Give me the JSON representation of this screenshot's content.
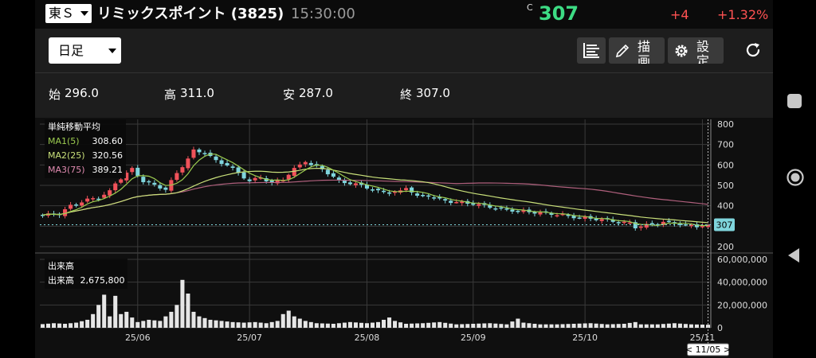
{
  "header": {
    "market": "東Ｓ",
    "stock_name": "リミックスポイント (3825)",
    "time": "15:30:00",
    "price_mark": "C",
    "price": "307",
    "change": "+4",
    "change_pct": "+1.32%"
  },
  "toolbar": {
    "period": "日足",
    "draw_label": "描画",
    "settings_label": "設定"
  },
  "ohlc": {
    "open_label": "始",
    "open": "296.0",
    "high_label": "高",
    "high": "311.0",
    "low_label": "安",
    "low": "287.0",
    "close_label": "終",
    "close": "307.0"
  },
  "legend": {
    "title": "単純移動平均",
    "ma1_label": "MA1(5)",
    "ma1_value": "308.60",
    "ma2_label": "MA2(25)",
    "ma2_value": "320.56",
    "ma3_label": "MA3(75)",
    "ma3_value": "389.21"
  },
  "volume_legend": {
    "title": "出来高",
    "label": "出来高",
    "value": "2,675,800"
  },
  "colors": {
    "up": "#f0525a",
    "down": "#7fd5dc",
    "ma1": "#9ccc50",
    "ma2": "#c9e07a",
    "ma3": "#b0607d",
    "volume": "#e6e6e6",
    "last_price_bg": "#7fd5dc"
  },
  "chart_data": {
    "type": "candlestick",
    "price_axis": {
      "min": 200,
      "max": 800,
      "ticks": [
        "800",
        "700",
        "600",
        "500",
        "400",
        "300",
        "200"
      ]
    },
    "last_price_tag": "307",
    "volume_axis": {
      "min": 0,
      "max": 60000000,
      "ticks": [
        "60,000,000",
        "40,000,000",
        "20,000,000",
        "0"
      ]
    },
    "x_ticks": [
      {
        "label": "25/06",
        "index": 17
      },
      {
        "label": "25/07",
        "index": 37
      },
      {
        "label": "25/08",
        "index": 58
      },
      {
        "label": "25/09",
        "index": 77
      },
      {
        "label": "25/10",
        "index": 97
      },
      {
        "label": "25/11",
        "index": 118
      }
    ],
    "cursor_label": "< 11/05 >",
    "grid": true,
    "ohlc_last": {
      "open": 296.0,
      "high": 311.0,
      "low": 287.0,
      "close": 307.0
    },
    "ma_last": {
      "ma1": 308.6,
      "ma2": 320.56,
      "ma3": 389.21
    },
    "volume_last": 2675800,
    "close_path": [
      [
        0,
        355
      ],
      [
        3,
        360
      ],
      [
        5,
        400
      ],
      [
        8,
        430
      ],
      [
        10,
        440
      ],
      [
        12,
        470
      ],
      [
        13,
        510
      ],
      [
        15,
        560
      ],
      [
        16,
        580
      ],
      [
        18,
        520
      ],
      [
        20,
        500
      ],
      [
        22,
        480
      ],
      [
        23,
        520
      ],
      [
        24,
        560
      ],
      [
        26,
        630
      ],
      [
        27,
        670
      ],
      [
        29,
        660
      ],
      [
        31,
        620
      ],
      [
        33,
        600
      ],
      [
        35,
        560
      ],
      [
        37,
        520
      ],
      [
        39,
        540
      ],
      [
        41,
        510
      ],
      [
        43,
        530
      ],
      [
        45,
        580
      ],
      [
        46,
        600
      ],
      [
        47,
        620
      ],
      [
        48,
        600
      ],
      [
        50,
        580
      ],
      [
        51,
        560
      ],
      [
        53,
        520
      ],
      [
        55,
        510
      ],
      [
        57,
        500
      ],
      [
        58,
        490
      ],
      [
        60,
        470
      ],
      [
        62,
        465
      ],
      [
        64,
        470
      ],
      [
        65,
        490
      ],
      [
        66,
        470
      ],
      [
        67,
        445
      ],
      [
        69,
        450
      ],
      [
        71,
        430
      ],
      [
        73,
        420
      ],
      [
        75,
        415
      ],
      [
        77,
        410
      ],
      [
        79,
        400
      ],
      [
        81,
        390
      ],
      [
        83,
        380
      ],
      [
        85,
        375
      ],
      [
        87,
        370
      ],
      [
        89,
        365
      ],
      [
        91,
        360
      ],
      [
        93,
        355
      ],
      [
        95,
        345
      ],
      [
        97,
        340
      ],
      [
        99,
        335
      ],
      [
        101,
        330
      ],
      [
        103,
        320
      ],
      [
        105,
        315
      ],
      [
        106,
        295
      ],
      [
        107,
        300
      ],
      [
        109,
        310
      ],
      [
        111,
        320
      ],
      [
        113,
        315
      ],
      [
        115,
        305
      ],
      [
        117,
        300
      ],
      [
        119,
        307
      ]
    ],
    "volume_path": [
      [
        0,
        3200000
      ],
      [
        2,
        4000000
      ],
      [
        4,
        3500000
      ],
      [
        6,
        4500000
      ],
      [
        8,
        7000000
      ],
      [
        9,
        12000000
      ],
      [
        10,
        20000000
      ],
      [
        11,
        29000000
      ],
      [
        12,
        10000000
      ],
      [
        13,
        28000000
      ],
      [
        14,
        12000000
      ],
      [
        15,
        14000000
      ],
      [
        16,
        9000000
      ],
      [
        17,
        5000000
      ],
      [
        19,
        7000000
      ],
      [
        21,
        6000000
      ],
      [
        22,
        10000000
      ],
      [
        23,
        14000000
      ],
      [
        24,
        20000000
      ],
      [
        25,
        42000000
      ],
      [
        26,
        30000000
      ],
      [
        27,
        14000000
      ],
      [
        28,
        10000000
      ],
      [
        30,
        7000000
      ],
      [
        32,
        6000000
      ],
      [
        34,
        5000000
      ],
      [
        36,
        4500000
      ],
      [
        38,
        5000000
      ],
      [
        40,
        4000000
      ],
      [
        42,
        6000000
      ],
      [
        43,
        12000000
      ],
      [
        44,
        15000000
      ],
      [
        45,
        10000000
      ],
      [
        46,
        8000000
      ],
      [
        47,
        6000000
      ],
      [
        49,
        4000000
      ],
      [
        52,
        3500000
      ],
      [
        55,
        5000000
      ],
      [
        58,
        4000000
      ],
      [
        60,
        5000000
      ],
      [
        62,
        9000000
      ],
      [
        63,
        6000000
      ],
      [
        65,
        3500000
      ],
      [
        68,
        4000000
      ],
      [
        71,
        5000000
      ],
      [
        74,
        3000000
      ],
      [
        77,
        3500000
      ],
      [
        80,
        4000000
      ],
      [
        83,
        3000000
      ],
      [
        85,
        8000000
      ],
      [
        86,
        4500000
      ],
      [
        89,
        3000000
      ],
      [
        92,
        3000000
      ],
      [
        95,
        3500000
      ],
      [
        98,
        4000000
      ],
      [
        101,
        3000000
      ],
      [
        104,
        3500000
      ],
      [
        106,
        5000000
      ],
      [
        107,
        3000000
      ],
      [
        110,
        3000000
      ],
      [
        113,
        4000000
      ],
      [
        116,
        3000000
      ],
      [
        119,
        2675800
      ]
    ]
  }
}
